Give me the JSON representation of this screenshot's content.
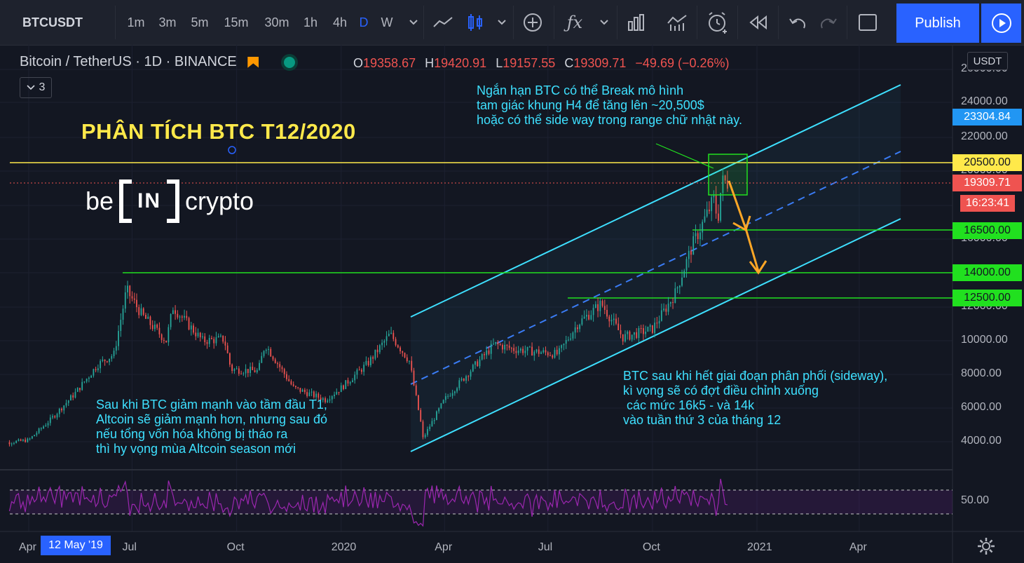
{
  "toolbar": {
    "symbol": "BTCUSDT",
    "intervals": [
      "1m",
      "3m",
      "5m",
      "15m",
      "30m",
      "1h",
      "4h",
      "D",
      "W"
    ],
    "active_interval": "D",
    "publish_label": "Publish"
  },
  "legend": {
    "symbol_name": "Bitcoin / TetherUS · 1D · BINANCE",
    "open_label": "O",
    "open": "19358.67",
    "high_label": "H",
    "high": "19420.91",
    "low_label": "L",
    "low": "19157.55",
    "close_label": "C",
    "close": "19309.71",
    "change": "−49.69 (−0.26%)",
    "collapse_count": "3"
  },
  "price_axis": {
    "currency": "USDT",
    "ticks": [
      "26000.00",
      "24000.00",
      "22000.00",
      "20000.00",
      "18000.00",
      "16000.00",
      "14000.00",
      "12000.00",
      "10000.00",
      "8000.00",
      "6000.00",
      "4000.00"
    ],
    "labels": {
      "top_level": "23304.84",
      "resistance": "20500.00",
      "last_price": "19309.71",
      "countdown": "16:23:41",
      "support_1": "16500.00",
      "support_2": "14000.00",
      "support_3": "12500.00"
    },
    "rsi_level": "50.00"
  },
  "time_axis": {
    "ticks": [
      "Apr",
      "Jul",
      "Oct",
      "2020",
      "Apr",
      "Jul",
      "Oct",
      "2021",
      "Apr"
    ],
    "cursor_date": "12 May '19"
  },
  "annotations": {
    "title": "PHÂN TÍCH BTC T12/2020",
    "logo_left": "be",
    "logo_box": "IN",
    "logo_right": "crypto",
    "note_short_term": "Ngắn hạn BTC có thể Break mô hình\ntam giác khung H4 để tăng lên ~20,500$\nhoặc có thể side way trong range chữ nhật này.",
    "note_altcoin": "Sau khi BTC giảm mạnh vào tầm đầu T1,\nAltcoin sẽ giảm mạnh hơn, nhưng sau đó\nnếu tổng vốn hóa không bị tháo ra\nthì hy vọng mùa Altcoin season mới",
    "note_correction": "BTC sau khi hết giai đoạn phân phối (sideway),\nkì vọng sẽ có đợt điều chỉnh xuống\n các mức 16k5 - và 14k\nvào tuần thứ 3 của tháng 12"
  },
  "colors": {
    "background": "#131722",
    "up_candle": "#26a69a",
    "down_candle": "#ef5350",
    "channel": "#3ee0ff",
    "support_line": "#21e01f",
    "resistance_line": "#ffe94a",
    "arrow": "#ffa726",
    "rsi": "#9c27b0",
    "accent": "#2962ff"
  },
  "chart_data": {
    "type": "candlestick",
    "x_range": [
      "Apr 2019",
      "May 2021"
    ],
    "y_range": [
      3000,
      26000
    ],
    "price_path": [
      [
        "2019-03-01",
        3850
      ],
      [
        "2019-04-01",
        4100
      ],
      [
        "2019-04-20",
        5300
      ],
      [
        "2019-05-12",
        6900
      ],
      [
        "2019-06-01",
        8600
      ],
      [
        "2019-06-15",
        9200
      ],
      [
        "2019-06-26",
        13000
      ],
      [
        "2019-07-10",
        11500
      ],
      [
        "2019-07-31",
        10000
      ],
      [
        "2019-08-06",
        12000
      ],
      [
        "2019-09-01",
        10000
      ],
      [
        "2019-09-20",
        10100
      ],
      [
        "2019-09-26",
        8300
      ],
      [
        "2019-10-20",
        8200
      ],
      [
        "2019-10-26",
        9800
      ],
      [
        "2019-11-20",
        7200
      ],
      [
        "2019-12-18",
        6500
      ],
      [
        "2020-01-01",
        7200
      ],
      [
        "2020-01-25",
        8700
      ],
      [
        "2020-02-13",
        10400
      ],
      [
        "2020-03-01",
        8800
      ],
      [
        "2020-03-12",
        4800
      ],
      [
        "2020-03-13",
        4200
      ],
      [
        "2020-04-01",
        6500
      ],
      [
        "2020-04-30",
        8700
      ],
      [
        "2020-05-15",
        9800
      ],
      [
        "2020-06-01",
        9500
      ],
      [
        "2020-07-10",
        9200
      ],
      [
        "2020-07-27",
        11000
      ],
      [
        "2020-08-17",
        12200
      ],
      [
        "2020-09-05",
        10200
      ],
      [
        "2020-10-01",
        10700
      ],
      [
        "2020-10-21",
        12800
      ],
      [
        "2020-11-05",
        15600
      ],
      [
        "2020-11-25",
        18500
      ],
      [
        "2020-11-27",
        16800
      ],
      [
        "2020-12-01",
        19400
      ],
      [
        "2020-12-07",
        19309.71
      ]
    ],
    "levels": [
      23304.84,
      20500,
      16500,
      14000,
      12500
    ],
    "rsi_mid": 50
  }
}
